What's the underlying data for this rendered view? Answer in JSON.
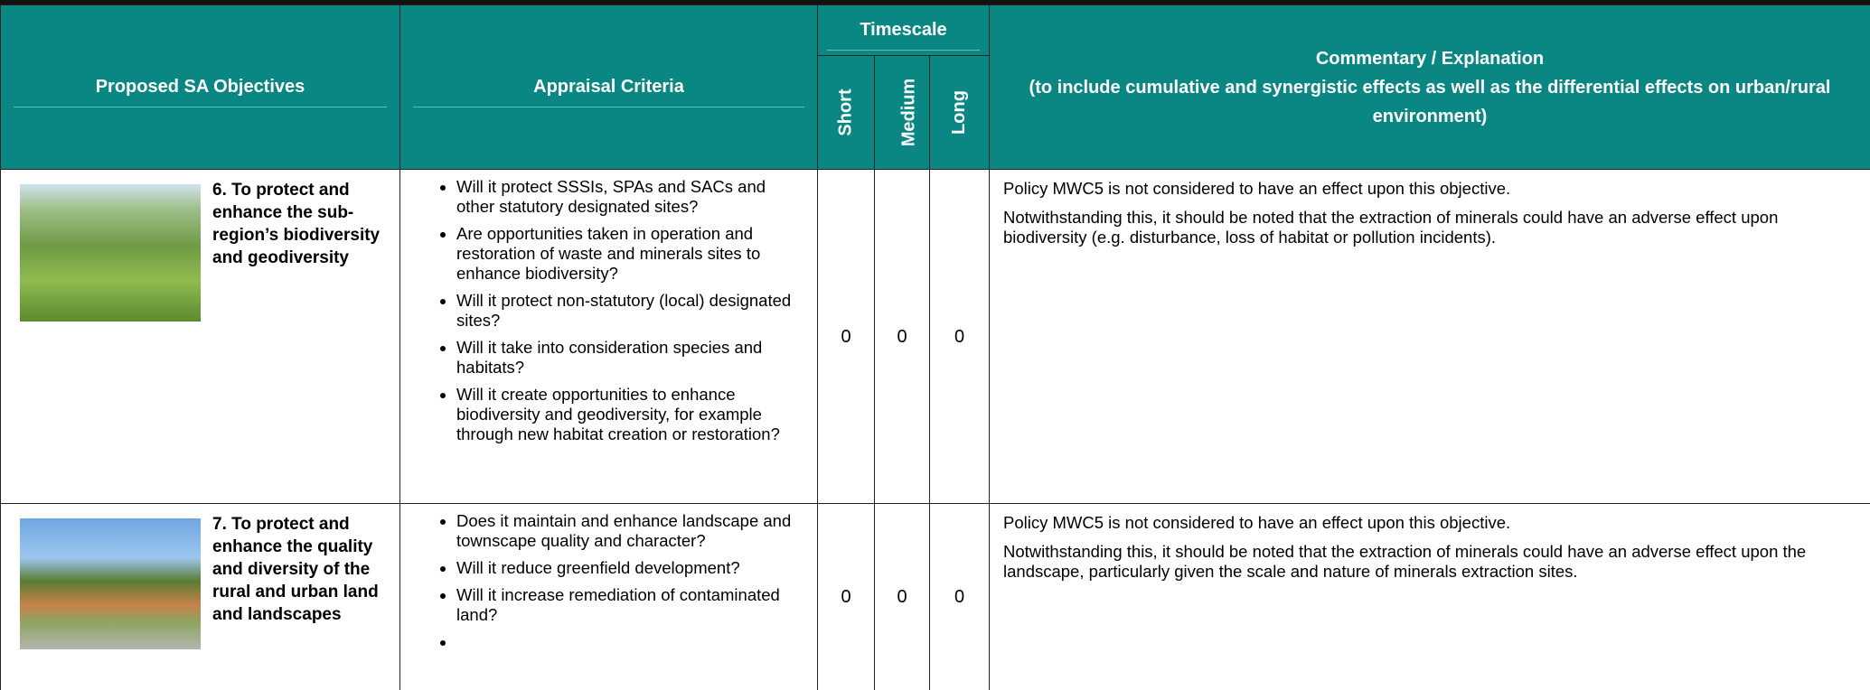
{
  "header": {
    "objectives": "Proposed SA Objectives",
    "criteria": "Appraisal Criteria",
    "timescale": "Timescale",
    "short": "Short",
    "medium": "Medium",
    "long": "Long",
    "commentary_title": "Commentary / Explanation",
    "commentary_subtitle": "(to include cumulative and synergistic effects as well as the differential effects on urban/rural environment)"
  },
  "rows": [
    {
      "objective": "6. To protect and enhance the sub-region’s biodiversity and geodiversity",
      "criteria": [
        "Will it protect SSSIs, SPAs and SACs and other statutory designated sites?",
        "Are opportunities taken in operation and restoration of waste and minerals sites to enhance biodiversity?",
        "Will it protect non-statutory (local) designated sites?",
        "Will it take into consideration species and habitats?",
        "Will it create opportunities to enhance biodiversity and geodiversity, for example through new habitat creation or restoration?"
      ],
      "short": 0,
      "medium": 0,
      "long": 0,
      "commentary": [
        "Policy MWC5 is not considered to have an effect upon this objective.",
        "Notwithstanding this, it should be noted that the extraction of minerals could have an adverse effect upon biodiversity (e.g. disturbance, loss of habitat or pollution incidents)."
      ]
    },
    {
      "objective": "7. To protect and enhance the quality and diversity of the rural and urban land and landscapes",
      "criteria": [
        "Does it maintain and enhance landscape and townscape quality and character?",
        "Will it reduce greenfield development?",
        "Will it increase remediation of contaminated land?"
      ],
      "short": 0,
      "medium": 0,
      "long": 0,
      "commentary": [
        "Policy MWC5 is not considered to have an effect upon this objective.",
        "Notwithstanding this, it should be noted that the extraction of minerals could have an adverse effect upon the landscape, particularly given the scale and nature of minerals extraction sites."
      ]
    }
  ]
}
